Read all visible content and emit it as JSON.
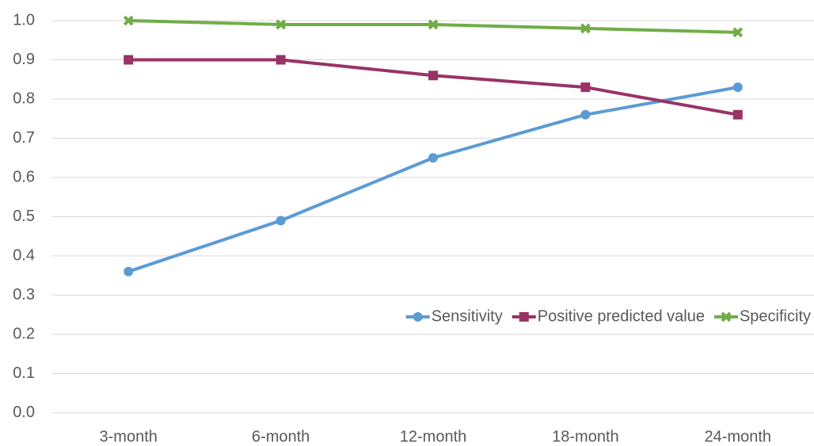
{
  "chart_data": {
    "type": "line",
    "categories": [
      "3-month",
      "6-month",
      "12-month",
      "18-month",
      "24-month"
    ],
    "series": [
      {
        "name": "Sensitivity",
        "color": "#5b9bd5",
        "marker": "circle",
        "values": [
          0.36,
          0.49,
          0.65,
          0.76,
          0.83
        ]
      },
      {
        "name": "Positive predicted value",
        "color": "#993366",
        "marker": "square",
        "values": [
          0.9,
          0.9,
          0.86,
          0.83,
          0.76
        ]
      },
      {
        "name": "Specificity",
        "color": "#70ad47",
        "marker": "x",
        "values": [
          1.0,
          0.99,
          0.99,
          0.98,
          0.97
        ]
      }
    ],
    "ylim": [
      0,
      1
    ],
    "yticks": [
      {
        "value": 0,
        "label": "0.0"
      },
      0.1,
      0.2,
      0.3,
      0.4,
      0.5,
      0.6,
      0.7,
      0.8,
      0.9,
      {
        "value": 1,
        "label": "1.0"
      }
    ],
    "grid": true,
    "legend": "center-right"
  }
}
